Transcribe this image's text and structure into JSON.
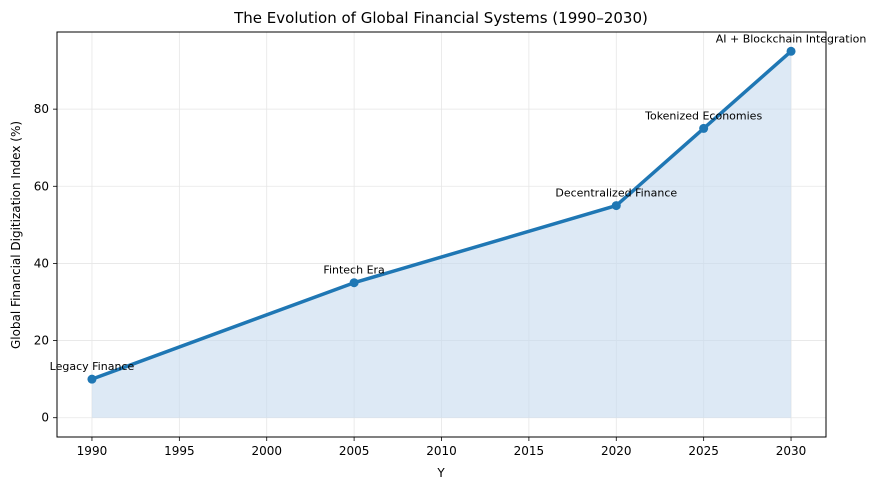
{
  "chart_data": {
    "type": "area",
    "title": "The Evolution of Global Financial Systems (1990–2030)",
    "xlabel": "Y",
    "ylabel": "Global Financial Digitization Index (%)",
    "xlim": [
      1988,
      2032
    ],
    "ylim": [
      -5,
      100
    ],
    "xticks": [
      1990,
      1995,
      2000,
      2005,
      2010,
      2015,
      2020,
      2025,
      2030
    ],
    "yticks": [
      0,
      20,
      40,
      60,
      80
    ],
    "grid": true,
    "legend": "none",
    "series": [
      {
        "x": [
          1990,
          2005,
          2020,
          2025,
          2030
        ],
        "y": [
          10,
          35,
          55,
          75,
          95
        ],
        "color": "#1f77b4",
        "fill_color": "#c6dbef"
      }
    ],
    "annotations": [
      {
        "x": 1990,
        "y": 10,
        "text": "Legacy Finance"
      },
      {
        "x": 2005,
        "y": 35,
        "text": "Fintech Era"
      },
      {
        "x": 2020,
        "y": 55,
        "text": "Decentralized Finance"
      },
      {
        "x": 2025,
        "y": 75,
        "text": "Tokenized Economies"
      },
      {
        "x": 2030,
        "y": 95,
        "text": "AI + Blockchain Integration"
      }
    ]
  }
}
